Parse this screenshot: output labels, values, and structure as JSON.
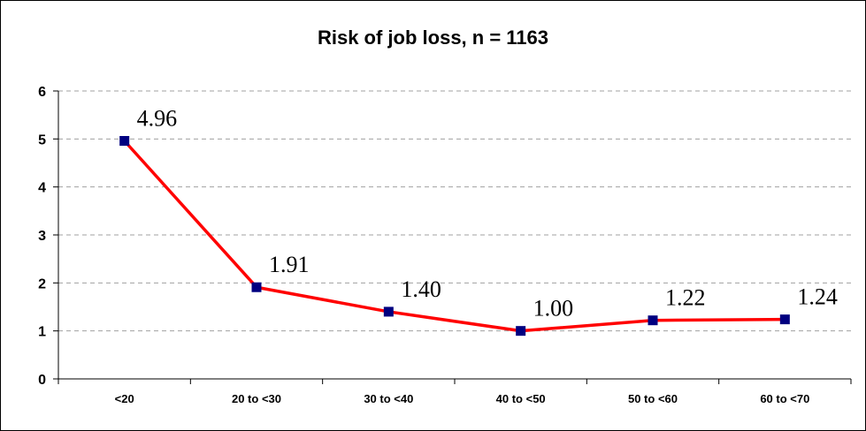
{
  "chart_data": {
    "type": "line",
    "title": "Risk of job loss, n = 1163",
    "xlabel": "",
    "ylabel": "",
    "categories": [
      "<20",
      "20 to <30",
      "30 to <40",
      "40 to <50",
      "50 to <60",
      "60 to <70"
    ],
    "series": [
      {
        "values": [
          4.96,
          1.91,
          1.4,
          1.0,
          1.22,
          1.24
        ],
        "labels": [
          "4.96",
          "1.91",
          "1.40",
          "1.00",
          "1.22",
          "1.24"
        ],
        "line_color": "#ff0000",
        "marker_color": "#000080"
      }
    ],
    "ylim": [
      0,
      6
    ],
    "yticks": [
      "0",
      "1",
      "2",
      "3",
      "4",
      "5",
      "6"
    ],
    "grid": true,
    "legend": "none"
  }
}
